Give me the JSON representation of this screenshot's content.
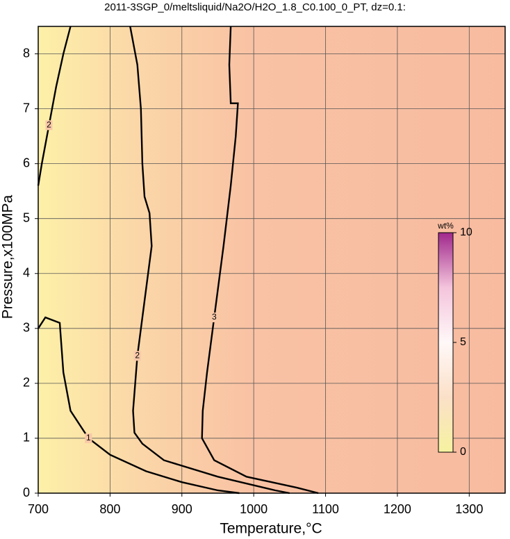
{
  "chart_data": {
    "type": "contour",
    "title": "2011-3SGP_0/meltsliquid/Na2O/H2O_1.8_C0.100_0_PT, dz=0.1:",
    "xlabel": "Temperature,°C",
    "ylabel": "Pressure,x100MPa",
    "xlim": [
      700,
      1350
    ],
    "ylim": [
      0,
      8.5
    ],
    "xticks": [
      700,
      800,
      900,
      1000,
      1100,
      1200,
      1300
    ],
    "yticks": [
      0,
      1,
      2,
      3,
      4,
      5,
      6,
      7,
      8
    ],
    "grid": true,
    "colorbar": {
      "label": "wt%",
      "lim": [
        0,
        10
      ],
      "ticks": [
        0,
        5,
        10
      ]
    },
    "contours": [
      {
        "level": 1,
        "x": [
          700,
          710,
          730,
          735,
          745,
          770,
          800,
          850,
          900,
          950,
          980
        ],
        "y": [
          3.0,
          3.2,
          3.1,
          2.2,
          1.5,
          1.0,
          0.7,
          0.4,
          0.2,
          0.05,
          0
        ]
      },
      {
        "level": 2,
        "x": [
          745,
          735,
          725,
          715,
          705,
          700
        ],
        "y": [
          8.5,
          8.0,
          7.4,
          6.7,
          6.0,
          5.6
        ]
      },
      {
        "level": 2,
        "x": [
          828,
          838,
          843,
          845,
          848,
          855,
          858,
          848,
          838,
          832,
          834,
          845,
          875,
          950,
          1030,
          1050
        ],
        "y": [
          8.5,
          7.8,
          7.0,
          6.0,
          5.4,
          5.1,
          4.5,
          3.5,
          2.5,
          1.5,
          1.1,
          0.9,
          0.6,
          0.3,
          0.05,
          0
        ]
      },
      {
        "level": 3,
        "x": [
          968,
          966,
          968,
          978,
          975,
          968,
          958,
          945,
          935,
          929,
          928,
          945,
          990,
          1060,
          1090
        ],
        "y": [
          8.5,
          7.8,
          7.1,
          7.1,
          6.5,
          5.6,
          4.5,
          3.2,
          2.2,
          1.5,
          1.0,
          0.6,
          0.3,
          0.1,
          0
        ]
      }
    ]
  }
}
